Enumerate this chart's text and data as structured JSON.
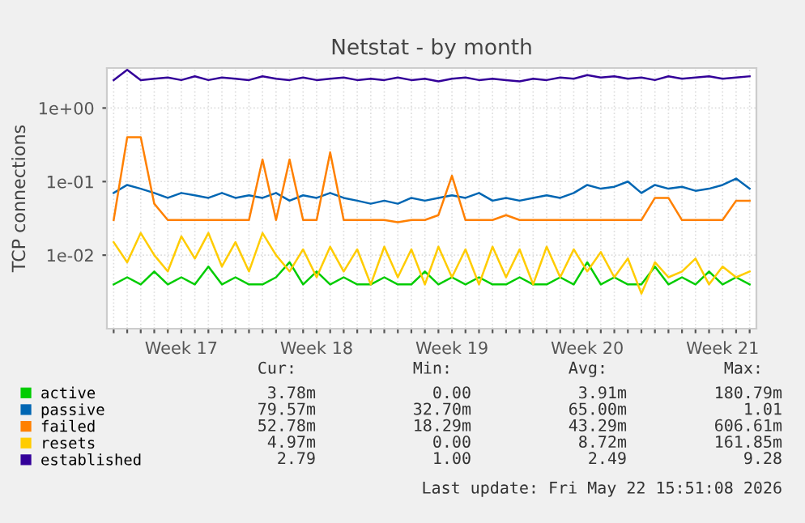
{
  "chart_data": {
    "type": "line",
    "title": "Netstat - by month",
    "ylabel": "TCP connections",
    "categories": [
      null,
      null,
      null,
      null,
      null,
      "Week 17",
      null,
      null,
      null,
      null,
      null,
      null,
      null,
      null,
      null,
      "Week 18",
      null,
      null,
      null,
      null,
      null,
      null,
      null,
      null,
      null,
      "Week 19",
      null,
      null,
      null,
      null,
      null,
      null,
      null,
      null,
      null,
      "Week 20",
      null,
      null,
      null,
      null,
      null,
      null,
      null,
      null,
      null,
      "Week 21",
      null,
      null
    ],
    "log": "y",
    "ylim": [
      0.001,
      3.5
    ],
    "yticks": [
      {
        "value": 0.01,
        "label": "1e-02"
      },
      {
        "value": 0.1,
        "label": "1e-01"
      },
      {
        "value": 1,
        "label": "1e+00"
      }
    ],
    "grid": true,
    "legend": "bottom",
    "marker": "none",
    "line_style": "solid",
    "series": [
      {
        "name": "active",
        "color": "#00cc00",
        "values": [
          0.004,
          0.005,
          0.004,
          0.006,
          0.004,
          0.005,
          0.004,
          0.007,
          0.004,
          0.005,
          0.004,
          0.004,
          0.005,
          0.008,
          0.004,
          0.006,
          0.004,
          0.005,
          0.004,
          0.004,
          0.005,
          0.004,
          0.004,
          0.006,
          0.004,
          0.005,
          0.004,
          0.005,
          0.004,
          0.004,
          0.005,
          0.004,
          0.004,
          0.005,
          0.004,
          0.008,
          0.004,
          0.005,
          0.004,
          0.004,
          0.007,
          0.004,
          0.005,
          0.004,
          0.006,
          0.004,
          0.005,
          0.004
        ]
      },
      {
        "name": "passive",
        "color": "#0066b3",
        "values": [
          0.07,
          0.09,
          0.08,
          0.07,
          0.06,
          0.07,
          0.065,
          0.06,
          0.07,
          0.06,
          0.065,
          0.06,
          0.07,
          0.055,
          0.065,
          0.06,
          0.07,
          0.06,
          0.055,
          0.05,
          0.055,
          0.05,
          0.06,
          0.055,
          0.06,
          0.065,
          0.06,
          0.07,
          0.055,
          0.06,
          0.055,
          0.06,
          0.065,
          0.06,
          0.07,
          0.09,
          0.08,
          0.085,
          0.1,
          0.07,
          0.09,
          0.08,
          0.085,
          0.075,
          0.08,
          0.09,
          0.11,
          0.08
        ]
      },
      {
        "name": "failed",
        "color": "#ff8000",
        "values": [
          0.03,
          0.4,
          0.4,
          0.05,
          0.03,
          0.03,
          0.03,
          0.03,
          0.03,
          0.03,
          0.03,
          0.2,
          0.03,
          0.2,
          0.03,
          0.03,
          0.25,
          0.03,
          0.03,
          0.03,
          0.03,
          0.028,
          0.03,
          0.03,
          0.035,
          0.12,
          0.03,
          0.03,
          0.03,
          0.035,
          0.03,
          0.03,
          0.03,
          0.03,
          0.03,
          0.03,
          0.03,
          0.03,
          0.03,
          0.03,
          0.06,
          0.06,
          0.03,
          0.03,
          0.03,
          0.03,
          0.055,
          0.055
        ]
      },
      {
        "name": "resets",
        "color": "#ffcc00",
        "values": [
          0.015,
          0.008,
          0.02,
          0.01,
          0.006,
          0.018,
          0.009,
          0.02,
          0.007,
          0.015,
          0.006,
          0.02,
          0.01,
          0.006,
          0.012,
          0.005,
          0.013,
          0.006,
          0.012,
          0.004,
          0.013,
          0.005,
          0.012,
          0.004,
          0.013,
          0.005,
          0.012,
          0.004,
          0.013,
          0.005,
          0.012,
          0.004,
          0.013,
          0.005,
          0.012,
          0.006,
          0.011,
          0.005,
          0.009,
          0.003,
          0.008,
          0.005,
          0.006,
          0.009,
          0.004,
          0.007,
          0.005,
          0.006
        ]
      },
      {
        "name": "established",
        "color": "#330099",
        "values": [
          2.4,
          3.3,
          2.4,
          2.5,
          2.6,
          2.4,
          2.7,
          2.4,
          2.6,
          2.5,
          2.4,
          2.7,
          2.5,
          2.4,
          2.6,
          2.4,
          2.5,
          2.6,
          2.4,
          2.5,
          2.4,
          2.6,
          2.4,
          2.5,
          2.3,
          2.5,
          2.6,
          2.4,
          2.5,
          2.4,
          2.3,
          2.5,
          2.4,
          2.6,
          2.5,
          2.8,
          2.6,
          2.7,
          2.5,
          2.6,
          2.4,
          2.7,
          2.5,
          2.6,
          2.7,
          2.5,
          2.6,
          2.7
        ]
      }
    ],
    "annotations": [
      "Cur:",
      "Min:",
      "Avg:",
      "Max:",
      "3.78m",
      "0.00",
      "3.91m",
      "180.79m",
      "79.57m",
      "32.70m",
      "65.00m",
      "1.01",
      "52.78m",
      "18.29m",
      "43.29m",
      "606.61m",
      "4.97m",
      "0.00",
      "8.72m",
      "161.85m",
      "2.79",
      "1.00",
      "2.49",
      "9.28",
      "Last update: Fri May 22 15:51:08 2026"
    ]
  }
}
